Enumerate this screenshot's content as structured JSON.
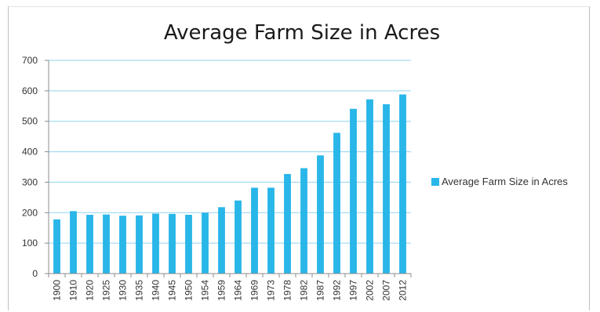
{
  "chart_data": {
    "type": "bar",
    "title": "Average Farm Size in Acres",
    "xlabel": "",
    "ylabel": "",
    "ylim": [
      0,
      700
    ],
    "yticks": [
      0,
      100,
      200,
      300,
      400,
      500,
      600,
      700
    ],
    "categories": [
      "1900",
      "1910",
      "1920",
      "1925",
      "1930",
      "1935",
      "1940",
      "1945",
      "1950",
      "1954",
      "1959",
      "1964",
      "1969",
      "1973",
      "1978",
      "1982",
      "1987",
      "1992",
      "1997",
      "2002",
      "2007",
      "2012"
    ],
    "series": [
      {
        "name": "Average Farm Size in Acres",
        "color": "#29b6e8",
        "values": [
          178,
          205,
          193,
          194,
          190,
          191,
          197,
          196,
          193,
          200,
          218,
          240,
          282,
          282,
          327,
          346,
          388,
          462,
          541,
          572,
          556,
          588
        ]
      }
    ],
    "grid": true,
    "legend_position": "right"
  }
}
